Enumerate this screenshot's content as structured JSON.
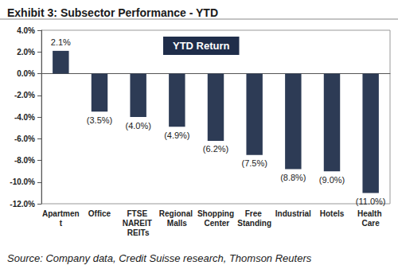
{
  "chart_data": {
    "type": "bar",
    "title": "Exhibit 3: Subsector Performance - YTD",
    "annotations": [
      "YTD Return"
    ],
    "source": "Source: Company data, Credit Suisse research, Thomson Reuters",
    "categories": [
      "Apartment",
      "Office",
      "FTSE NAREIT REITs",
      "Regional Malls",
      "Shopping Center",
      "Free Standing",
      "Industrial",
      "Hotels",
      "Health Care"
    ],
    "values": [
      2.1,
      -3.5,
      -4.0,
      -4.9,
      -6.2,
      -7.5,
      -8.8,
      -9.0,
      -11.0
    ],
    "value_labels": [
      "2.1%",
      "(3.5%)",
      "(4.0%)",
      "(4.9%)",
      "(6.2%)",
      "(7.5%)",
      "(8.8%)",
      "(9.0%)",
      "(11.0%)"
    ],
    "color": "#2d3b55",
    "ylim": [
      -12,
      4
    ],
    "yticks": [
      {
        "value": -12,
        "label": "-12.0%"
      },
      {
        "value": -10,
        "label": "-10.0%"
      },
      {
        "value": -8,
        "label": "-8.0%"
      },
      {
        "value": -6,
        "label": "-6.0%"
      },
      {
        "value": -4,
        "label": "-4.0%"
      },
      {
        "value": -2,
        "label": "-2.0%"
      },
      {
        "value": 0,
        "label": "0.0%"
      },
      {
        "value": 2,
        "label": "2.0%"
      },
      {
        "value": 4,
        "label": "4.0%"
      }
    ],
    "grid": false,
    "data_labels": true
  }
}
